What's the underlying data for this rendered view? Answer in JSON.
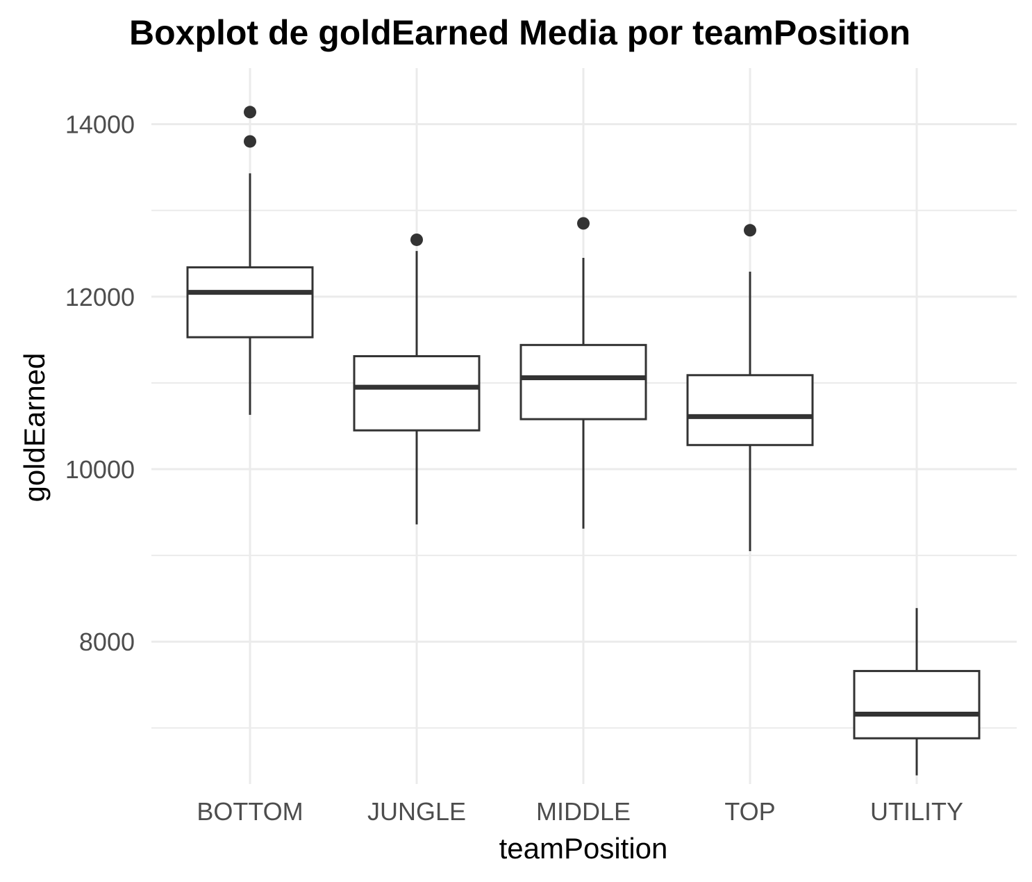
{
  "chart_data": {
    "type": "boxplot",
    "title": "Boxplot de goldEarned Media por teamPosition",
    "xlabel": "teamPosition",
    "ylabel": "goldEarned",
    "categories": [
      "BOTTOM",
      "JUNGLE",
      "MIDDLE",
      "TOP",
      "UTILITY"
    ],
    "ylim": [
      6350,
      14650
    ],
    "y_ticks": [
      8000,
      10000,
      12000,
      14000
    ],
    "y_tick_labels": [
      "8000",
      "10000",
      "12000",
      "14000"
    ],
    "grid": true,
    "legend": "none",
    "boxes": [
      {
        "category": "BOTTOM",
        "whisker_low": 10630,
        "q1": 11530,
        "median": 12050,
        "q3": 12340,
        "whisker_high": 13430,
        "outliers": [
          13800,
          14140
        ]
      },
      {
        "category": "JUNGLE",
        "whisker_low": 9360,
        "q1": 10450,
        "median": 10950,
        "q3": 11310,
        "whisker_high": 12530,
        "outliers": [
          12660
        ]
      },
      {
        "category": "MIDDLE",
        "whisker_low": 9310,
        "q1": 10580,
        "median": 11060,
        "q3": 11440,
        "whisker_high": 12450,
        "outliers": [
          12850
        ]
      },
      {
        "category": "TOP",
        "whisker_low": 9050,
        "q1": 10280,
        "median": 10610,
        "q3": 11090,
        "whisker_high": 12290,
        "outliers": [
          12770
        ]
      },
      {
        "category": "UTILITY",
        "whisker_low": 6450,
        "q1": 6880,
        "median": 7160,
        "q3": 7660,
        "whisker_high": 8390,
        "outliers": []
      }
    ],
    "colors": {
      "box_stroke": "#333333",
      "box_fill": "#ffffff",
      "grid_major": "#ebebeb",
      "grid_minor": "#ebebeb",
      "tick_text": "#4d4d4d",
      "title_text": "#000000"
    }
  }
}
